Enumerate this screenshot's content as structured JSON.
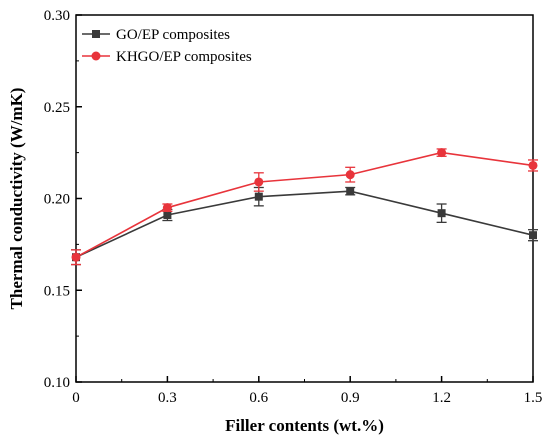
{
  "chart_data": {
    "type": "line",
    "xlabel": "Filler contents (wt.%)",
    "ylabel": "Thermal conductivity (W/mK)",
    "x": [
      0,
      0.3,
      0.6,
      0.9,
      1.2,
      1.5
    ],
    "x_tick_labels": [
      "0",
      "0.3",
      "0.6",
      "0.9",
      "1.2",
      "1.5"
    ],
    "y_tick_labels": [
      "0.10",
      "0.15",
      "0.20",
      "0.25",
      "0.30"
    ],
    "xlim": [
      0,
      1.5
    ],
    "ylim": [
      0.1,
      0.3
    ],
    "grid": false,
    "legend_position": "top-left",
    "series": [
      {
        "name": "GO/EP composites",
        "color": "#3a3a3a",
        "marker": "square",
        "values": [
          0.168,
          0.191,
          0.201,
          0.204,
          0.192,
          0.18
        ],
        "errors": [
          0.004,
          0.003,
          0.005,
          0.002,
          0.005,
          0.003
        ]
      },
      {
        "name": "KHGO/EP composites",
        "color": "#e8343b",
        "marker": "circle",
        "values": [
          0.168,
          0.195,
          0.209,
          0.213,
          0.225,
          0.218
        ],
        "errors": [
          0.004,
          0.002,
          0.005,
          0.004,
          0.002,
          0.003
        ]
      }
    ]
  }
}
